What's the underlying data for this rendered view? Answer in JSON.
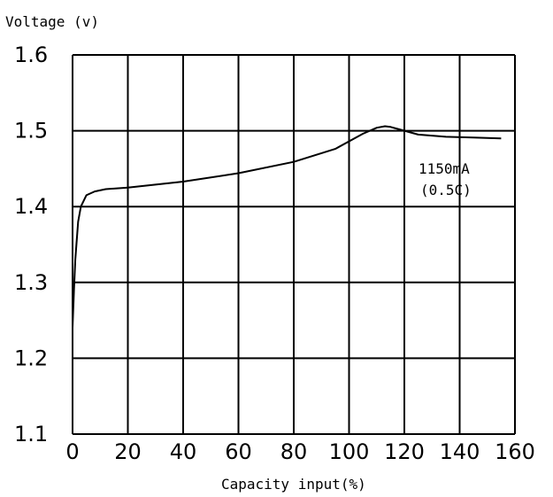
{
  "chart_data": {
    "type": "line",
    "ylabel": "Voltage (v)",
    "xlabel": "Capacity input(%)",
    "xlim": [
      0,
      160
    ],
    "ylim": [
      1.1,
      1.6
    ],
    "xticks": [
      "0",
      "20",
      "40",
      "60",
      "80",
      "100",
      "120",
      "140",
      "160"
    ],
    "yticks": [
      "1.1",
      "1.2",
      "1.3",
      "1.4",
      "1.5",
      "1.6"
    ],
    "grid": true,
    "annotations": [
      "1150mA",
      "(0.5C)"
    ],
    "series": [
      {
        "x": [
          0,
          0.5,
          1,
          2,
          3,
          5,
          8,
          12,
          20,
          40,
          60,
          80,
          95,
          105,
          110,
          113,
          115,
          118,
          125,
          135,
          145,
          155
        ],
        "y": [
          1.24,
          1.29,
          1.33,
          1.38,
          1.4,
          1.415,
          1.42,
          1.423,
          1.425,
          1.433,
          1.444,
          1.459,
          1.476,
          1.496,
          1.504,
          1.506,
          1.505,
          1.502,
          1.495,
          1.492,
          1.491,
          1.49
        ]
      }
    ]
  }
}
